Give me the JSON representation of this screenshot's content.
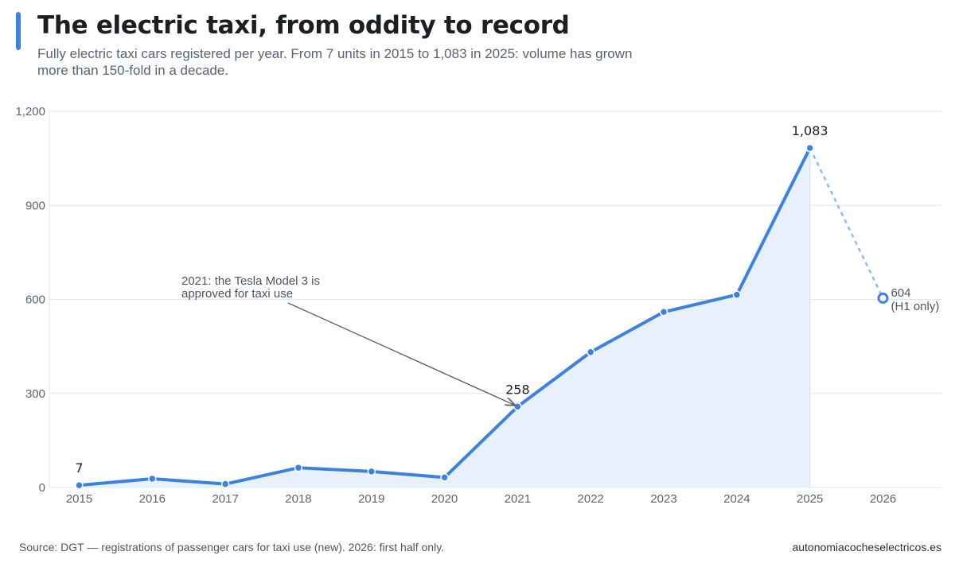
{
  "header": {
    "title": "The electric taxi, from oddity to record",
    "subtitle": "Fully electric taxi cars registered per year. From 7 units in 2015 to 1,083 in 2025: volume has grown more than 150-fold in a decade."
  },
  "colors": {
    "accent": "#3b82e0",
    "line": "#3b82e0",
    "area_fill": "#e8f0fb",
    "partial_line": "#8fbbef",
    "grid": "#e2e6ec",
    "annotation_arrow": "#555c66"
  },
  "chart_data": {
    "type": "area",
    "categories": [
      "2015",
      "2016",
      "2017",
      "2018",
      "2019",
      "2020",
      "2021",
      "2022",
      "2023",
      "2024",
      "2025",
      "2026"
    ],
    "values": [
      7,
      28,
      11,
      63,
      51,
      32,
      258,
      432,
      560,
      615,
      1083,
      604
    ],
    "value_labels": [
      "7",
      "",
      "",
      "",
      "",
      "",
      "258",
      "",
      "",
      "",
      "1,083",
      "604"
    ],
    "partial_note": "(H1 only)",
    "partial_index": 11,
    "ylim": [
      0,
      1200
    ],
    "yticks": [
      0,
      300,
      600,
      900,
      1200
    ],
    "ytick_labels": [
      "0",
      "300",
      "600",
      "900",
      "1,200"
    ],
    "grid": true,
    "annotation": {
      "lines": [
        "2021: the Tesla Model 3 is",
        "approved for taxi use"
      ],
      "target_category": "2021"
    }
  },
  "footer": {
    "source": "Source: DGT — registrations of passenger cars for taxi use (new). 2026: first half only.",
    "site": "autonomiacocheselectricos.es"
  }
}
